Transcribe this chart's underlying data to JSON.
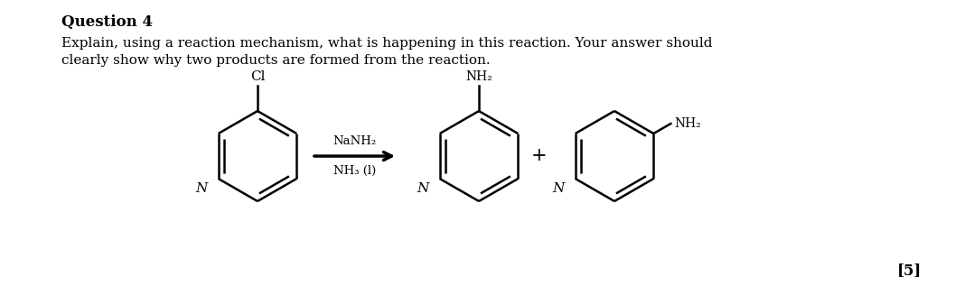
{
  "title": "Question 4",
  "paragraph_line1": "Explain, using a reaction mechanism, what is happening in this reaction. Your answer should",
  "paragraph_line2": "clearly show why two products are formed from the reaction.",
  "reagents_line1": "NaNH₂",
  "reagents_line2": "NH₃ (l)",
  "cl_label": "Cl",
  "nh2_label": "NH₂",
  "n_label": "N",
  "plus_sign": "+",
  "score": "[5]",
  "background_color": "#ffffff",
  "text_color": "#000000",
  "title_fontsize": 12,
  "body_fontsize": 11,
  "struct_fontsize": 10,
  "reagent_fontsize": 9.5,
  "score_fontsize": 12
}
